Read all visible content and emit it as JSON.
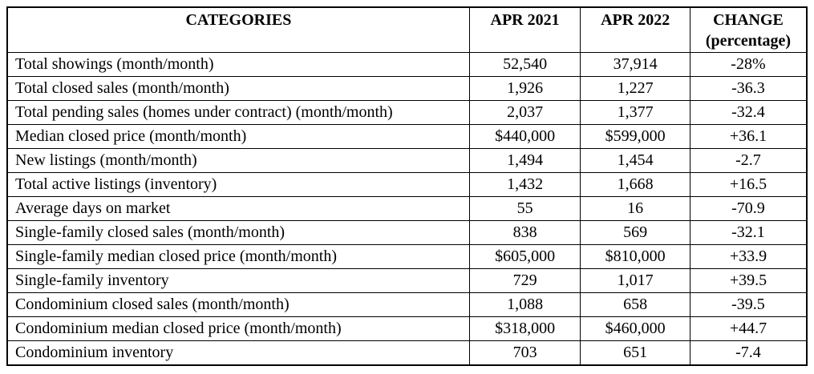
{
  "chart_data": {
    "type": "table",
    "columns": [
      "CATEGORIES",
      "APR 2021",
      "APR 2022",
      "CHANGE (percentage)"
    ],
    "rows": [
      [
        "Total showings (month/month)",
        "52,540",
        "37,914",
        "-28%"
      ],
      [
        "Total closed sales (month/month)",
        "1,926",
        "1,227",
        "-36.3"
      ],
      [
        "Total pending sales (homes under contract) (month/month)",
        "2,037",
        "1,377",
        "-32.4"
      ],
      [
        "Median closed price (month/month)",
        "$440,000",
        "$599,000",
        "+36.1"
      ],
      [
        "New listings (month/month)",
        "1,494",
        "1,454",
        "-2.7"
      ],
      [
        "Total active listings (inventory)",
        "1,432",
        "1,668",
        "+16.5"
      ],
      [
        "Average days on market",
        "55",
        "16",
        "-70.9"
      ],
      [
        "Single-family closed sales (month/month)",
        "838",
        "569",
        "-32.1"
      ],
      [
        "Single-family median closed price (month/month)",
        "$605,000",
        "$810,000",
        "+33.9"
      ],
      [
        "Single-family inventory",
        "729",
        "1,017",
        "+39.5"
      ],
      [
        "Condominium closed sales (month/month)",
        "1,088",
        "658",
        "-39.5"
      ],
      [
        "Condominium median closed price (month/month)",
        "$318,000",
        "$460,000",
        "+44.7"
      ],
      [
        "Condominium inventory",
        "703",
        "651",
        "-7.4"
      ]
    ]
  },
  "header": {
    "categories": "CATEGORIES",
    "apr2021": "APR 2021",
    "apr2022": "APR 2022",
    "change": "CHANGE",
    "change_sub": "(percentage)"
  }
}
